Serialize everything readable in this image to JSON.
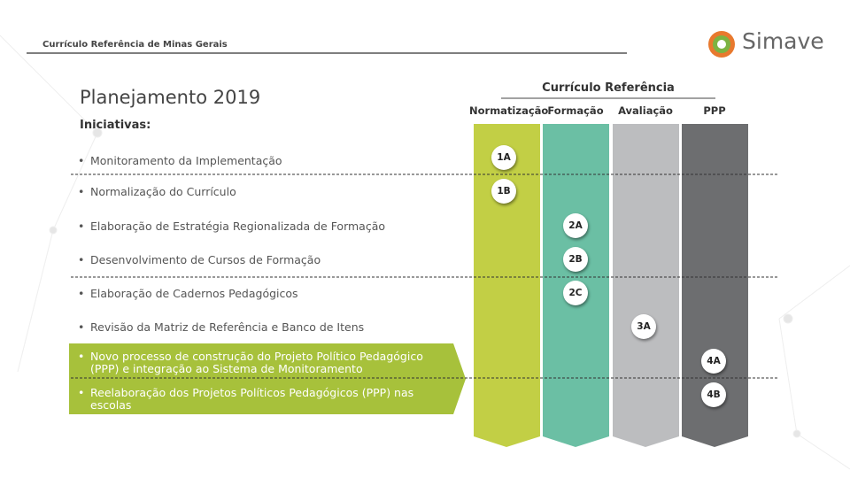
{
  "header": {
    "title": "Currículo Referência de Minas Gerais",
    "logo": "Simave"
  },
  "slide": {
    "title": "Planejamento 2019",
    "subtitle": "Iniciativas:",
    "items": [
      "Monitoramento da Implementação",
      "Normalização do Currículo",
      "Elaboração de Estratégia Regionalizada de Formação",
      "Desenvolvimento de Cursos de Formação",
      "Elaboração de Cadernos Pedagógicos",
      "Revisão da Matriz de Referência e Banco de Itens",
      "Novo processo de construção do Projeto Político Pedagógico (PPP) e integração ao Sistema de Monitoramento",
      "Reelaboração dos Projetos Políticos Pedagógicos (PPP) nas escolas"
    ],
    "bullet": "•"
  },
  "framework": {
    "title": "Currículo Referência",
    "columns": [
      "Normatização",
      "Formação",
      "Avaliação",
      "PPP"
    ],
    "badges": [
      "1A",
      "1B",
      "2A",
      "2B",
      "2C",
      "3A",
      "4A",
      "4B"
    ]
  }
}
